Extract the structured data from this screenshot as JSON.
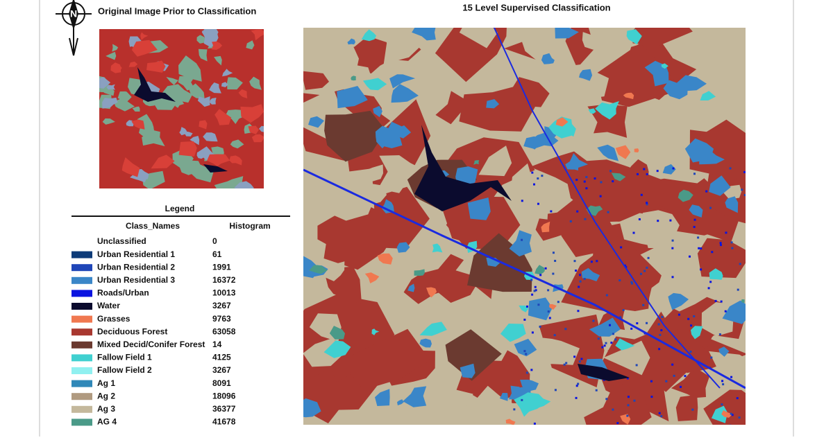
{
  "original": {
    "title": "Original Image Prior to Classification"
  },
  "classified": {
    "title": "15 Level Supervised Classification"
  },
  "legend": {
    "title": "Legend",
    "columns": [
      "Class_Names",
      "Histogram"
    ],
    "rows": [
      {
        "name": "Unclassified",
        "value": 0
      },
      {
        "name": "Urban Residential 1",
        "value": 61,
        "color": "#0d3b78"
      },
      {
        "name": "Urban Residential 2",
        "value": 1991,
        "color": "#1f46b8"
      },
      {
        "name": "Urban Residential 3",
        "value": 16372,
        "color": "#3a86c8"
      },
      {
        "name": "Roads/Urban",
        "value": 10013,
        "color": "#0a14e0"
      },
      {
        "name": "Water",
        "value": 3267,
        "color": "#0b0b2e"
      },
      {
        "name": "Grasses",
        "value": 9763,
        "color": "#f07850"
      },
      {
        "name": "Deciduous Forest",
        "value": 63058,
        "color": "#a83830"
      },
      {
        "name": "Mixed Decid/Conifer Forest",
        "value": 14,
        "color": "#6b3a30"
      },
      {
        "name": "Fallow Field 1",
        "value": 4125,
        "color": "#40d0d0"
      },
      {
        "name": "Fallow Field 2",
        "value": 3267,
        "color": "#90f0f0"
      },
      {
        "name": "Ag 1",
        "value": 8091,
        "color": "#3088b8"
      },
      {
        "name": "Ag 2",
        "value": 18096,
        "color": "#b09a80"
      },
      {
        "name": "Ag 3",
        "value": 36377,
        "color": "#c4b89c"
      },
      {
        "name": "AG 4",
        "value": 41678,
        "color": "#4a9a88"
      }
    ]
  }
}
